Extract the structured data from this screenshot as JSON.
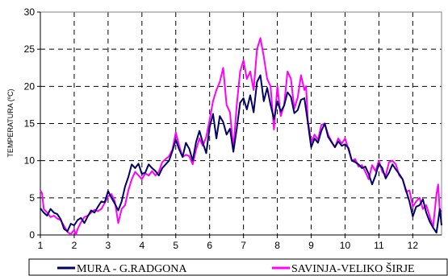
{
  "chart_data": {
    "type": "line",
    "ylabel": "TEMPERATURA (ºC)",
    "xlim": [
      1,
      12.85
    ],
    "ylim": [
      0,
      30
    ],
    "x_ticks": [
      1,
      2,
      3,
      4,
      5,
      6,
      7,
      8,
      9,
      10,
      11,
      12
    ],
    "x_tick_labels": [
      "1",
      "2",
      "3",
      "4",
      "5",
      "6",
      "7",
      "8",
      "9",
      "10",
      "11",
      "12"
    ],
    "y_ticks": [
      0,
      5,
      10,
      15,
      20,
      25,
      30
    ],
    "y_tick_labels": [
      "0",
      "5",
      "10",
      "15",
      "20",
      "25",
      "30"
    ],
    "grid": true,
    "legend_position": "bottom",
    "series": [
      {
        "name": "MURA - G.RADGONA",
        "color": "#000066",
        "points": [
          [
            1.0,
            3.6
          ],
          [
            1.1,
            3.0
          ],
          [
            1.2,
            2.6
          ],
          [
            1.3,
            3.5
          ],
          [
            1.4,
            3.0
          ],
          [
            1.5,
            2.8
          ],
          [
            1.6,
            2.1
          ],
          [
            1.7,
            0.8
          ],
          [
            1.8,
            0.5
          ],
          [
            1.9,
            1.5
          ],
          [
            2.0,
            1.3
          ],
          [
            2.1,
            2.0
          ],
          [
            2.2,
            2.3
          ],
          [
            2.3,
            1.6
          ],
          [
            2.4,
            2.5
          ],
          [
            2.5,
            3.3
          ],
          [
            2.6,
            3.0
          ],
          [
            2.7,
            3.8
          ],
          [
            2.8,
            4.5
          ],
          [
            2.9,
            4.4
          ],
          [
            3.0,
            5.9
          ],
          [
            3.1,
            5.0
          ],
          [
            3.2,
            4.2
          ],
          [
            3.3,
            3.3
          ],
          [
            3.4,
            4.5
          ],
          [
            3.5,
            6.5
          ],
          [
            3.6,
            7.8
          ],
          [
            3.7,
            9.5
          ],
          [
            3.8,
            9.0
          ],
          [
            3.9,
            9.6
          ],
          [
            4.0,
            8.2
          ],
          [
            4.1,
            8.4
          ],
          [
            4.2,
            9.5
          ],
          [
            4.3,
            9.0
          ],
          [
            4.4,
            8.6
          ],
          [
            4.5,
            8.0
          ],
          [
            4.6,
            9.0
          ],
          [
            4.7,
            9.5
          ],
          [
            4.8,
            10.0
          ],
          [
            4.9,
            11.3
          ],
          [
            5.0,
            12.8
          ],
          [
            5.1,
            11.5
          ],
          [
            5.2,
            10.5
          ],
          [
            5.3,
            12.4
          ],
          [
            5.4,
            11.6
          ],
          [
            5.5,
            10.0
          ],
          [
            5.6,
            12.5
          ],
          [
            5.7,
            14.0
          ],
          [
            5.8,
            12.4
          ],
          [
            5.9,
            11.0
          ],
          [
            6.0,
            14.5
          ],
          [
            6.1,
            16.3
          ],
          [
            6.2,
            13.0
          ],
          [
            6.3,
            16.0
          ],
          [
            6.4,
            15.2
          ],
          [
            6.5,
            13.5
          ],
          [
            6.6,
            14.3
          ],
          [
            6.7,
            11.2
          ],
          [
            6.8,
            14.3
          ],
          [
            6.9,
            17.8
          ],
          [
            7.0,
            18.4
          ],
          [
            7.1,
            16.9
          ],
          [
            7.2,
            18.8
          ],
          [
            7.3,
            16.5
          ],
          [
            7.4,
            20.6
          ],
          [
            7.5,
            21.5
          ],
          [
            7.6,
            18.0
          ],
          [
            7.7,
            19.8
          ],
          [
            7.8,
            17.5
          ],
          [
            7.9,
            15.6
          ],
          [
            8.0,
            18.0
          ],
          [
            8.1,
            16.6
          ],
          [
            8.2,
            17.4
          ],
          [
            8.3,
            19.2
          ],
          [
            8.4,
            18.6
          ],
          [
            8.5,
            16.4
          ],
          [
            8.6,
            16.8
          ],
          [
            8.7,
            18.2
          ],
          [
            8.8,
            18.4
          ],
          [
            8.9,
            15.2
          ],
          [
            9.0,
            11.8
          ],
          [
            9.1,
            13.0
          ],
          [
            9.2,
            12.4
          ],
          [
            9.3,
            14.0
          ],
          [
            9.4,
            15.0
          ],
          [
            9.5,
            13.2
          ],
          [
            9.6,
            12.5
          ],
          [
            9.7,
            11.8
          ],
          [
            9.8,
            12.6
          ],
          [
            9.9,
            12.0
          ],
          [
            10.0,
            12.2
          ],
          [
            10.1,
            11.7
          ],
          [
            10.2,
            10.0
          ],
          [
            10.3,
            9.8
          ],
          [
            10.4,
            9.5
          ],
          [
            10.5,
            9.0
          ],
          [
            10.6,
            9.2
          ],
          [
            10.7,
            8.2
          ],
          [
            10.8,
            6.8
          ],
          [
            10.9,
            8.0
          ],
          [
            11.0,
            9.6
          ],
          [
            11.1,
            9.0
          ],
          [
            11.2,
            7.6
          ],
          [
            11.3,
            8.4
          ],
          [
            11.4,
            9.5
          ],
          [
            11.5,
            8.8
          ],
          [
            11.6,
            8.2
          ],
          [
            11.7,
            7.5
          ],
          [
            11.8,
            6.0
          ],
          [
            11.9,
            4.5
          ],
          [
            12.0,
            2.5
          ],
          [
            12.1,
            3.8
          ],
          [
            12.2,
            4.0
          ],
          [
            12.3,
            4.8
          ],
          [
            12.4,
            3.0
          ],
          [
            12.5,
            1.8
          ],
          [
            12.6,
            1.0
          ],
          [
            12.7,
            0.3
          ],
          [
            12.8,
            3.5
          ],
          [
            12.85,
            1.3
          ]
        ]
      },
      {
        "name": "SAVINJA-VELIKO ŠIRJE",
        "color": "#ff00ff",
        "points": [
          [
            1.0,
            6.0
          ],
          [
            1.05,
            5.6
          ],
          [
            1.1,
            3.5
          ],
          [
            1.2,
            3.0
          ],
          [
            1.3,
            2.4
          ],
          [
            1.4,
            2.6
          ],
          [
            1.5,
            2.2
          ],
          [
            1.6,
            2.0
          ],
          [
            1.7,
            1.2
          ],
          [
            1.8,
            0.4
          ],
          [
            1.9,
            0.1
          ],
          [
            2.0,
            0.7
          ],
          [
            2.05,
            0.0
          ],
          [
            2.1,
            0.8
          ],
          [
            2.2,
            1.7
          ],
          [
            2.3,
            2.4
          ],
          [
            2.4,
            2.6
          ],
          [
            2.5,
            3.0
          ],
          [
            2.6,
            3.4
          ],
          [
            2.7,
            3.2
          ],
          [
            2.8,
            3.5
          ],
          [
            2.9,
            4.3
          ],
          [
            3.0,
            5.2
          ],
          [
            3.1,
            5.5
          ],
          [
            3.2,
            4.5
          ],
          [
            3.3,
            1.6
          ],
          [
            3.4,
            3.5
          ],
          [
            3.5,
            4.0
          ],
          [
            3.6,
            6.0
          ],
          [
            3.7,
            7.5
          ],
          [
            3.8,
            8.5
          ],
          [
            3.9,
            8.0
          ],
          [
            4.0,
            7.5
          ],
          [
            4.1,
            8.3
          ],
          [
            4.2,
            8.0
          ],
          [
            4.3,
            8.6
          ],
          [
            4.4,
            8.0
          ],
          [
            4.5,
            8.5
          ],
          [
            4.6,
            9.8
          ],
          [
            4.7,
            10.2
          ],
          [
            4.8,
            10.6
          ],
          [
            4.9,
            11.5
          ],
          [
            5.0,
            13.8
          ],
          [
            5.1,
            12.0
          ],
          [
            5.2,
            10.5
          ],
          [
            5.3,
            10.8
          ],
          [
            5.4,
            10.6
          ],
          [
            5.5,
            9.5
          ],
          [
            5.6,
            11.5
          ],
          [
            5.7,
            13.0
          ],
          [
            5.8,
            12.0
          ],
          [
            5.9,
            13.2
          ],
          [
            6.0,
            15.5
          ],
          [
            6.1,
            18.0
          ],
          [
            6.2,
            19.5
          ],
          [
            6.3,
            20.6
          ],
          [
            6.4,
            22.5
          ],
          [
            6.5,
            17.5
          ],
          [
            6.6,
            16.5
          ],
          [
            6.7,
            11.6
          ],
          [
            6.8,
            17.5
          ],
          [
            6.9,
            22.0
          ],
          [
            7.0,
            23.5
          ],
          [
            7.1,
            21.0
          ],
          [
            7.2,
            22.0
          ],
          [
            7.3,
            19.5
          ],
          [
            7.4,
            25.0
          ],
          [
            7.5,
            26.5
          ],
          [
            7.6,
            24.0
          ],
          [
            7.7,
            21.0
          ],
          [
            7.8,
            20.0
          ],
          [
            7.9,
            14.2
          ],
          [
            8.0,
            20.0
          ],
          [
            8.1,
            16.0
          ],
          [
            8.2,
            17.5
          ],
          [
            8.3,
            22.0
          ],
          [
            8.4,
            21.0
          ],
          [
            8.5,
            17.0
          ],
          [
            8.6,
            18.5
          ],
          [
            8.7,
            21.5
          ],
          [
            8.8,
            19.5
          ],
          [
            8.85,
            20.0
          ],
          [
            8.9,
            15.5
          ],
          [
            9.0,
            12.5
          ],
          [
            9.1,
            13.5
          ],
          [
            9.2,
            12.8
          ],
          [
            9.3,
            14.8
          ],
          [
            9.4,
            15.0
          ],
          [
            9.5,
            13.5
          ],
          [
            9.6,
            12.6
          ],
          [
            9.7,
            11.8
          ],
          [
            9.8,
            13.0
          ],
          [
            9.9,
            12.3
          ],
          [
            10.0,
            13.0
          ],
          [
            10.1,
            11.5
          ],
          [
            10.2,
            10.0
          ],
          [
            10.3,
            10.2
          ],
          [
            10.4,
            9.2
          ],
          [
            10.5,
            9.4
          ],
          [
            10.6,
            8.5
          ],
          [
            10.7,
            7.5
          ],
          [
            10.8,
            9.4
          ],
          [
            10.9,
            8.6
          ],
          [
            11.0,
            10.0
          ],
          [
            11.1,
            8.5
          ],
          [
            11.2,
            8.0
          ],
          [
            11.3,
            9.8
          ],
          [
            11.4,
            10.0
          ],
          [
            11.5,
            9.5
          ],
          [
            11.6,
            8.0
          ],
          [
            11.7,
            7.5
          ],
          [
            11.8,
            5.8
          ],
          [
            11.9,
            6.0
          ],
          [
            12.0,
            3.8
          ],
          [
            12.1,
            4.5
          ],
          [
            12.2,
            5.0
          ],
          [
            12.3,
            3.5
          ],
          [
            12.4,
            4.0
          ],
          [
            12.5,
            2.5
          ],
          [
            12.6,
            1.0
          ],
          [
            12.7,
            5.5
          ],
          [
            12.75,
            6.8
          ],
          [
            12.8,
            3.0
          ],
          [
            12.85,
            3.3
          ]
        ]
      }
    ]
  }
}
